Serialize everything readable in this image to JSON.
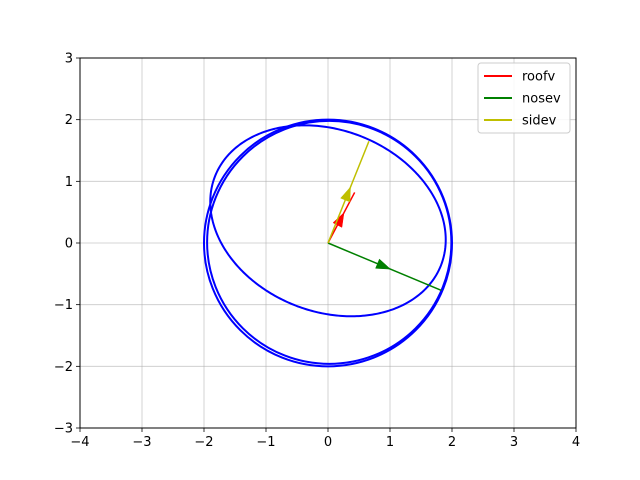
{
  "chart_data": {
    "type": "line",
    "title": "",
    "xlabel": "",
    "ylabel": "",
    "xlim": [
      -4,
      4
    ],
    "ylim": [
      -3,
      3
    ],
    "x_ticks": [
      -4,
      -3,
      -2,
      -1,
      0,
      1,
      2,
      3,
      4
    ],
    "y_ticks": [
      -3,
      -2,
      -1,
      0,
      1,
      2,
      3
    ],
    "x_tick_labels": [
      "−4",
      "−3",
      "−2",
      "−1",
      "0",
      "1",
      "2",
      "3",
      "4"
    ],
    "y_tick_labels": [
      "−3",
      "−2",
      "−1",
      "0",
      "1",
      "2",
      "3"
    ],
    "grid": true,
    "legend_position": "top-right",
    "curves": {
      "color": "#0000ff",
      "circles": [
        {
          "cx": 0,
          "cy": 0,
          "r": 2.0
        },
        {
          "cx": 0.02,
          "cy": 0.01,
          "r": 1.97
        }
      ],
      "ellipse": {
        "cx": 0,
        "cy": 0.36,
        "rx": 1.96,
        "ry": 1.47,
        "rotation_deg": -22
      }
    },
    "vectors": [
      {
        "name": "roofv",
        "color": "#ff0000",
        "from": [
          0,
          0
        ],
        "to": [
          0.43,
          0.82
        ]
      },
      {
        "name": "nosev",
        "color": "#008000",
        "from": [
          0,
          0
        ],
        "to": [
          1.83,
          -0.77
        ]
      },
      {
        "name": "sidev",
        "color": "#bfbf00",
        "from": [
          0,
          0
        ],
        "to": [
          0.66,
          1.65
        ]
      }
    ]
  }
}
